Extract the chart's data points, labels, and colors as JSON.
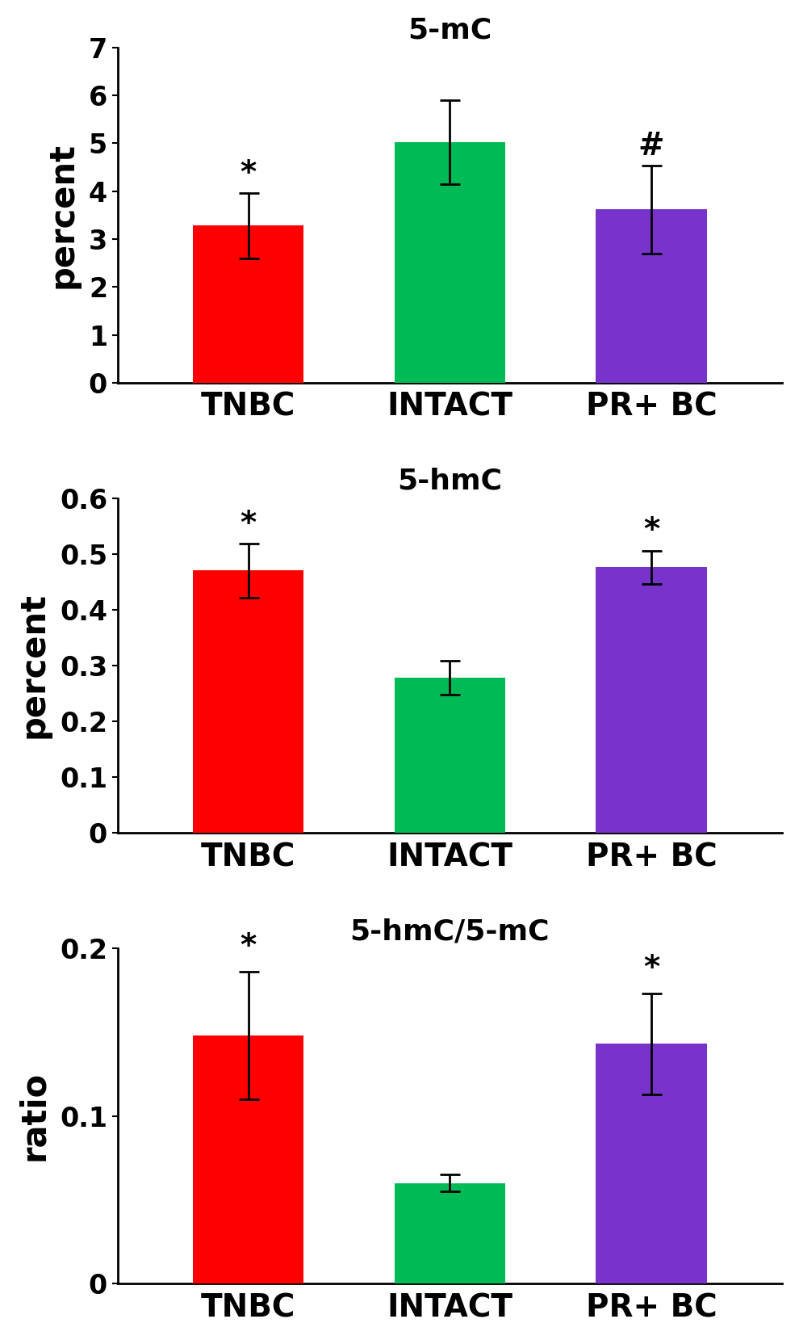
{
  "panel1": {
    "title": "5-mC",
    "ylabel": "percent",
    "categories": [
      "TNBC",
      "INTACT",
      "PR+ BC"
    ],
    "values": [
      3.28,
      5.02,
      3.62
    ],
    "errors": [
      0.68,
      0.88,
      0.92
    ],
    "colors": [
      "#ff0000",
      "#00bb55",
      "#7733cc"
    ],
    "ylim": [
      0,
      7
    ],
    "yticks": [
      0,
      1,
      2,
      3,
      4,
      5,
      6,
      7
    ],
    "yticklabels": [
      "0",
      "1",
      "2",
      "3",
      "4",
      "5",
      "6",
      "7"
    ],
    "annotations": [
      "*",
      "",
      "#"
    ],
    "annot_offsets": [
      0.08,
      0,
      0.08
    ]
  },
  "panel2": {
    "title": "5-hmC",
    "ylabel": "percent",
    "categories": [
      "TNBC",
      "INTACT",
      "PR+ BC"
    ],
    "values": [
      0.47,
      0.278,
      0.476
    ],
    "errors": [
      0.048,
      0.03,
      0.03
    ],
    "colors": [
      "#ff0000",
      "#00bb55",
      "#7733cc"
    ],
    "ylim": [
      0,
      0.6
    ],
    "yticks": [
      0,
      0.1,
      0.2,
      0.3,
      0.4,
      0.5,
      0.6
    ],
    "yticklabels": [
      "0",
      "0.1",
      "0.2",
      "0.3",
      "0.4",
      "0.5",
      "0.6"
    ],
    "annotations": [
      "*",
      "",
      "*"
    ],
    "annot_offsets": [
      0.008,
      0,
      0.008
    ]
  },
  "panel3": {
    "title": "5-hmC/5-mC",
    "ylabel": "ratio",
    "categories": [
      "TNBC",
      "INTACT",
      "PR+ BC"
    ],
    "values": [
      0.148,
      0.06,
      0.143
    ],
    "errors": [
      0.038,
      0.005,
      0.03
    ],
    "colors": [
      "#ff0000",
      "#00bb55",
      "#7733cc"
    ],
    "ylim": [
      0,
      0.2
    ],
    "yticks": [
      0,
      0.1,
      0.2
    ],
    "yticklabels": [
      "0",
      "0.1",
      "0.2"
    ],
    "annotations": [
      "*",
      "",
      "*"
    ],
    "annot_offsets": [
      0.006,
      0,
      0.006
    ]
  },
  "bar_width": 0.55,
  "bg_color": "#ffffff",
  "tick_fontsize": 24,
  "label_fontsize": 30,
  "title_fontsize": 26,
  "annot_fontsize": 28,
  "xticklabel_fontsize": 28
}
